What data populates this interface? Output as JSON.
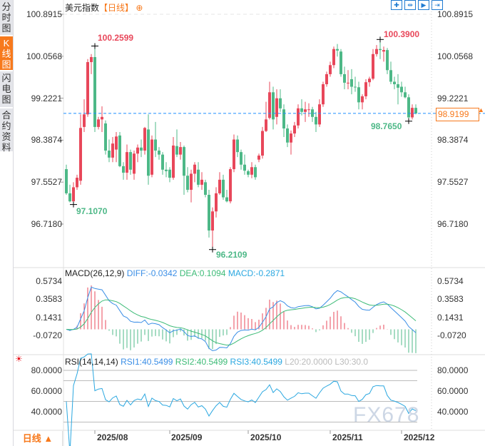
{
  "sidebar": {
    "tabs": [
      {
        "label": "分时图"
      },
      {
        "label": "K线图",
        "active": true
      },
      {
        "label": "闪电图"
      },
      {
        "label": "合约资料"
      }
    ]
  },
  "header": {
    "title": "美元指数",
    "period": "【日线】",
    "add_icon": "circle-plus-icon",
    "tools": [
      {
        "icon": "crosshair-icon"
      },
      {
        "icon": "zoom-range-icon"
      },
      {
        "icon": "play-icon"
      },
      {
        "icon": "jump-to-end-icon"
      }
    ]
  },
  "colors": {
    "up": "#e8475a",
    "down": "#4db887",
    "diff": "#3a8ee6",
    "dea": "#3dbb77",
    "rsi": "#2aa7e0",
    "accent": "#f7791c",
    "current_line": "#1f8fff"
  },
  "price_axis": {
    "ticks": [
      "100.8915",
      "100.0568",
      "99.2221",
      "98.3874",
      "97.5527",
      "96.7180"
    ],
    "current": "98.9199"
  },
  "annotations": {
    "high1": "100.2599",
    "low1": "97.1070",
    "low2": "96.2109",
    "high2": "100.3900",
    "low3": "98.7650"
  },
  "macd": {
    "label": "MACD(26,12,9)",
    "diff": "DIFF:-0.0342",
    "dea": "DEA:0.1094",
    "macd": "MACD:-0.2871",
    "ticks": [
      "0.5734",
      "0.3583",
      "0.1431",
      "-0.0720"
    ]
  },
  "rsi": {
    "label": "RSI(14,14,14)",
    "rsi1": "RSI1:40.5499",
    "rsi2": "RSI2:40.5499",
    "rsi3": "RSI3:40.5499",
    "l20": "L20:20.0000",
    "l30": "L30:30.0",
    "ticks": [
      "80.0000",
      "60.0000",
      "40.0000"
    ],
    "settings_icon": "sun-gear-icon"
  },
  "footer": {
    "period_label": "日线 ▲",
    "dates": [
      "2025/08",
      "2025/09",
      "2025/10",
      "2025/11",
      "2025/12"
    ]
  },
  "watermark": "FX678",
  "chart_data": {
    "type": "candlestick",
    "y_range": [
      96.718,
      100.8915
    ],
    "current_price": 98.9199,
    "date_ticks": [
      {
        "label": "2025/08",
        "index": 8
      },
      {
        "label": "2025/09",
        "index": 29
      },
      {
        "label": "2025/10",
        "index": 51
      },
      {
        "label": "2025/11",
        "index": 74
      },
      {
        "label": "2025/12",
        "index": 94
      }
    ],
    "ohlc": [
      [
        97.81,
        97.9,
        97.3,
        97.33
      ],
      [
        97.33,
        97.5,
        97.15,
        97.17
      ],
      [
        97.17,
        97.55,
        97.107,
        97.45
      ],
      [
        97.45,
        97.7,
        97.4,
        97.64
      ],
      [
        97.58,
        98.9,
        97.5,
        98.63
      ],
      [
        98.65,
        99.2,
        98.55,
        98.9
      ],
      [
        98.9,
        100.0,
        98.85,
        99.94
      ],
      [
        99.94,
        100.1,
        99.7,
        100.04
      ],
      [
        100.04,
        100.2599,
        98.55,
        98.65
      ],
      [
        98.65,
        98.85,
        98.6,
        98.8
      ],
      [
        98.8,
        99.06,
        98.55,
        98.85
      ],
      [
        98.72,
        98.78,
        98.1,
        98.18
      ],
      [
        98.18,
        98.4,
        97.95,
        98.04
      ],
      [
        98.04,
        98.45,
        97.95,
        98.32
      ],
      [
        98.2,
        98.55,
        97.95,
        98.46
      ],
      [
        98.48,
        98.55,
        97.85,
        97.87
      ],
      [
        97.87,
        97.95,
        97.6,
        97.74
      ],
      [
        97.74,
        98.3,
        97.6,
        98.15
      ],
      [
        98.15,
        98.2,
        97.7,
        97.8
      ],
      [
        97.72,
        98.18,
        97.6,
        98.12
      ],
      [
        98.12,
        98.3,
        97.95,
        98.24
      ],
      [
        98.24,
        98.4,
        98.05,
        98.18
      ],
      [
        98.18,
        98.65,
        98.1,
        98.63
      ],
      [
        98.6,
        98.9,
        97.5,
        97.68
      ],
      [
        97.7,
        98.48,
        97.65,
        98.4
      ],
      [
        98.4,
        98.75,
        98.05,
        98.18
      ],
      [
        98.18,
        98.25,
        98.0,
        98.1
      ],
      [
        98.1,
        98.15,
        97.7,
        97.8
      ],
      [
        97.8,
        97.95,
        97.65,
        97.77
      ],
      [
        97.8,
        97.85,
        97.55,
        97.64
      ],
      [
        97.64,
        98.45,
        97.6,
        98.28
      ],
      [
        98.27,
        98.6,
        98.05,
        98.1
      ],
      [
        98.1,
        98.35,
        98.0,
        98.25
      ],
      [
        98.25,
        98.28,
        97.3,
        97.68
      ],
      [
        97.68,
        97.85,
        97.35,
        97.4
      ],
      [
        97.4,
        97.8,
        97.15,
        97.72
      ],
      [
        97.72,
        97.95,
        97.55,
        97.9
      ],
      [
        97.8,
        97.95,
        97.45,
        97.5
      ],
      [
        97.5,
        97.75,
        97.4,
        97.6
      ],
      [
        97.55,
        97.6,
        97.25,
        97.3
      ],
      [
        97.3,
        97.4,
        96.45,
        96.59
      ],
      [
        96.59,
        97.05,
        96.2109,
        96.97
      ],
      [
        96.97,
        97.45,
        96.85,
        97.33
      ],
      [
        97.33,
        97.75,
        97.3,
        97.6
      ],
      [
        97.6,
        97.7,
        97.2,
        97.25
      ],
      [
        97.25,
        97.4,
        97.15,
        97.17
      ],
      [
        97.17,
        97.85,
        97.13,
        97.81
      ],
      [
        97.81,
        98.5,
        97.75,
        98.4
      ],
      [
        98.4,
        98.48,
        98.05,
        98.15
      ],
      [
        98.15,
        98.2,
        97.8,
        97.9
      ],
      [
        97.9,
        98.1,
        97.7,
        97.78
      ],
      [
        97.77,
        97.8,
        97.65,
        97.7
      ],
      [
        97.7,
        97.95,
        97.63,
        97.85
      ],
      [
        97.85,
        97.9,
        97.6,
        97.65
      ],
      [
        98.0,
        98.12,
        97.95,
        98.08
      ],
      [
        98.08,
        98.65,
        98.02,
        98.57
      ],
      [
        98.57,
        99.15,
        98.55,
        98.8
      ],
      [
        98.83,
        99.55,
        98.8,
        99.34
      ],
      [
        99.34,
        99.45,
        98.6,
        98.8
      ],
      [
        98.85,
        99.4,
        98.7,
        99.22
      ],
      [
        99.22,
        99.4,
        98.95,
        99.02
      ],
      [
        99.0,
        99.1,
        98.45,
        98.62
      ],
      [
        98.62,
        98.7,
        98.25,
        98.34
      ],
      [
        98.34,
        98.58,
        98.1,
        98.52
      ],
      [
        98.52,
        98.75,
        98.45,
        98.68
      ],
      [
        98.68,
        99.1,
        98.62,
        99.02
      ],
      [
        99.02,
        99.2,
        98.88,
        98.95
      ],
      [
        98.95,
        99.15,
        98.75,
        99.0
      ],
      [
        99.0,
        99.12,
        98.85,
        99.0
      ],
      [
        99.0,
        99.05,
        98.75,
        98.85
      ],
      [
        98.85,
        98.95,
        98.55,
        98.7
      ],
      [
        98.7,
        99.2,
        98.65,
        99.1
      ],
      [
        99.1,
        99.55,
        99.05,
        99.5
      ],
      [
        99.5,
        99.75,
        99.45,
        99.7
      ],
      [
        99.7,
        99.95,
        99.65,
        99.88
      ],
      [
        99.88,
        100.25,
        99.82,
        100.2
      ],
      [
        100.2,
        100.3,
        100.05,
        100.17
      ],
      [
        100.15,
        100.2,
        99.65,
        99.7
      ],
      [
        99.7,
        99.85,
        99.4,
        99.53
      ],
      [
        99.53,
        99.78,
        99.4,
        99.53
      ],
      [
        99.6,
        99.8,
        99.3,
        99.45
      ],
      [
        99.45,
        99.65,
        99.35,
        99.44
      ],
      [
        99.44,
        99.55,
        99.0,
        99.14
      ],
      [
        99.14,
        99.3,
        99.0,
        99.26
      ],
      [
        99.26,
        99.6,
        99.2,
        99.54
      ],
      [
        99.54,
        99.65,
        99.45,
        99.61
      ],
      [
        99.61,
        100.2,
        99.58,
        100.1
      ],
      [
        100.1,
        100.28,
        100.05,
        100.2
      ],
      [
        100.2,
        100.39,
        100.0,
        100.18
      ],
      [
        100.15,
        100.25,
        99.95,
        100.18
      ],
      [
        100.18,
        100.22,
        99.7,
        99.78
      ],
      [
        99.78,
        99.95,
        99.5,
        99.55
      ],
      [
        99.55,
        99.65,
        99.4,
        99.5
      ],
      [
        99.5,
        99.7,
        99.1,
        99.43
      ],
      [
        99.45,
        99.55,
        99.25,
        99.34
      ],
      [
        99.34,
        99.45,
        99.22,
        99.24
      ],
      [
        99.24,
        99.3,
        98.765,
        98.84
      ],
      [
        98.84,
        99.1,
        98.8,
        99.03
      ],
      [
        99.03,
        99.1,
        98.9,
        98.92
      ]
    ]
  }
}
